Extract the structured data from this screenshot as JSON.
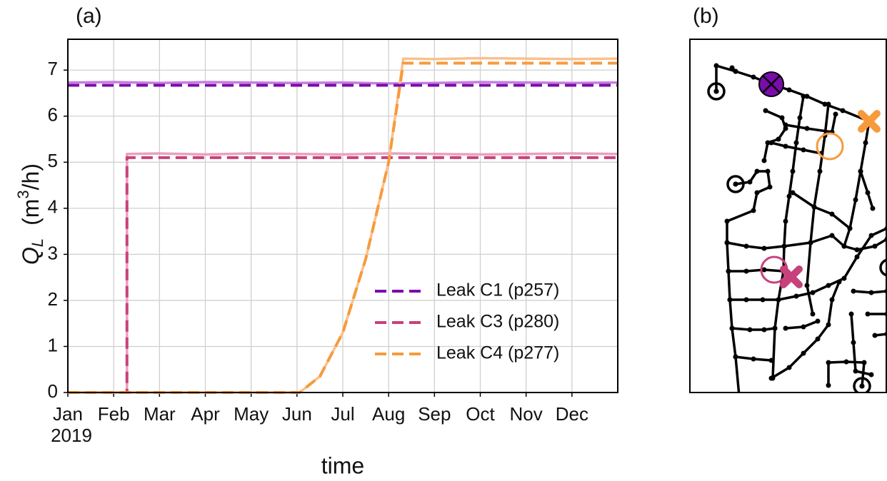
{
  "chart_data": {
    "type": "line",
    "panel_label": "(a)",
    "x_label": "time",
    "x_year_label": "2019",
    "y_label": {
      "symbol": "Q",
      "subscript": "L",
      "unit_open": "(m",
      "superscript": "3",
      "unit_close": "/h)"
    },
    "xlim": [
      0,
      12
    ],
    "xticks": [
      {
        "value": 0,
        "label": "Jan"
      },
      {
        "value": 1,
        "label": "Feb"
      },
      {
        "value": 2,
        "label": "Mar"
      },
      {
        "value": 3,
        "label": "Apr"
      },
      {
        "value": 4,
        "label": "May"
      },
      {
        "value": 5,
        "label": "Jun"
      },
      {
        "value": 6,
        "label": "Jul"
      },
      {
        "value": 7,
        "label": "Aug"
      },
      {
        "value": 8,
        "label": "Sep"
      },
      {
        "value": 9,
        "label": "Oct"
      },
      {
        "value": 10,
        "label": "Nov"
      },
      {
        "value": 11,
        "label": "Dec"
      }
    ],
    "ylim": [
      0,
      7.67
    ],
    "yticks": [
      0,
      1,
      2,
      3,
      4,
      5,
      6,
      7
    ],
    "grid": true,
    "legend": "lower right",
    "series": [
      {
        "color": "#c77de0",
        "dash": false,
        "x": [
          0,
          1,
          2,
          3,
          4,
          5,
          6,
          7,
          8,
          9,
          10,
          11,
          12
        ],
        "values": [
          6.73,
          6.74,
          6.72,
          6.74,
          6.73,
          6.72,
          6.73,
          6.71,
          6.72,
          6.74,
          6.73,
          6.72,
          6.73
        ]
      },
      {
        "color": "#eba0be",
        "dash": false,
        "x": [
          0,
          1.29,
          1.29,
          2,
          3,
          4,
          5,
          6,
          7,
          8,
          9,
          10,
          11,
          12
        ],
        "values": [
          0,
          0,
          5.18,
          5.19,
          5.17,
          5.19,
          5.18,
          5.17,
          5.19,
          5.18,
          5.17,
          5.18,
          5.19,
          5.18
        ]
      },
      {
        "color": "#f9c18c",
        "dash": false,
        "x": [
          0,
          5.06,
          5.5,
          6,
          6.5,
          7,
          7.32,
          8,
          9,
          10,
          11,
          12
        ],
        "values": [
          0,
          0,
          0.35,
          1.3,
          2.9,
          5.0,
          7.25,
          7.24,
          7.26,
          7.25,
          7.24,
          7.25
        ]
      },
      {
        "name": "Leak C1 (p257)",
        "color": "#7a0cab",
        "dash": true,
        "x": [
          0,
          12
        ],
        "values": [
          6.67,
          6.67
        ]
      },
      {
        "name": "Leak C3 (p280)",
        "color": "#c7417b",
        "dash": true,
        "x": [
          0,
          1.29,
          1.29,
          12
        ],
        "values": [
          0,
          0,
          5.1,
          5.1
        ]
      },
      {
        "name": "Leak C4 (p277)",
        "color": "#f79a3c",
        "dash": true,
        "x": [
          0,
          5.06,
          5.5,
          6,
          6.5,
          7,
          7.32,
          12
        ],
        "values": [
          0,
          0,
          0.35,
          1.3,
          2.9,
          5.0,
          7.15,
          7.15
        ]
      }
    ]
  },
  "network_panel": {
    "panel_label": "(b)"
  }
}
